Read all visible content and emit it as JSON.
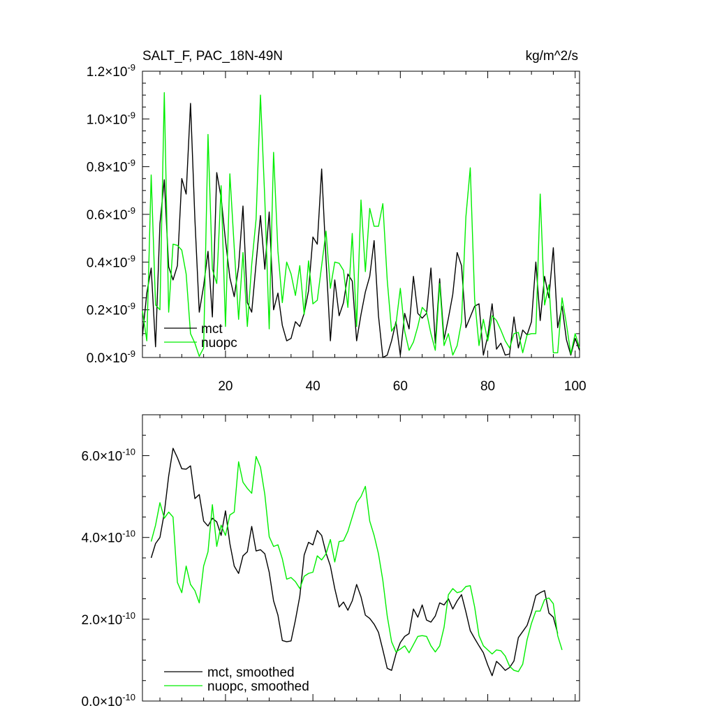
{
  "chart_data": [
    {
      "type": "line",
      "title_left": "SALT_F, PAC_18N-49N",
      "title_right": "kg/m^2/s",
      "xlabel": "",
      "ylabel": "",
      "xlim": [
        1,
        101
      ],
      "ylim": [
        0,
        1.2
      ],
      "y_exponent": "-9",
      "x_tick_labels": [
        "20",
        "40",
        "60",
        "80",
        "100"
      ],
      "x_ticks": [
        20,
        40,
        60,
        80,
        100
      ],
      "y_tick_labels": [
        "1.2",
        "1.0",
        "0.8",
        "0.6",
        "0.4",
        "0.2",
        "0.0"
      ],
      "y_ticks": [
        1.2,
        1.0,
        0.8,
        0.6,
        0.4,
        0.2,
        0.0
      ],
      "legend": [
        "mct",
        "nuopc"
      ],
      "series": [
        {
          "name": "mct",
          "color": "#000000",
          "values": [
            0.09,
            0.27,
            0.375,
            0.045,
            0.56,
            0.745,
            0.38,
            0.325,
            0.385,
            0.75,
            0.685,
            1.065,
            0.58,
            0.19,
            0.3,
            0.445,
            0.17,
            0.775,
            0.67,
            0.49,
            0.335,
            0.255,
            0.38,
            0.635,
            0.23,
            0.19,
            0.395,
            0.595,
            0.37,
            0.61,
            0.2,
            0.27,
            0.135,
            0.07,
            0.08,
            0.15,
            0.13,
            0.185,
            0.28,
            0.505,
            0.475,
            0.79,
            0.41,
            0.07,
            0.325,
            0.175,
            0.23,
            0.35,
            0.32,
            0.07,
            0.18,
            0.275,
            0.34,
            0.49,
            0.175,
            0.0,
            0.01,
            0.07,
            0.15,
            0.01,
            0.185,
            0.12,
            0.34,
            0.185,
            0.165,
            0.185,
            0.375,
            0.06,
            0.33,
            0.075,
            0.165,
            0.265,
            0.44,
            0.385,
            0.125,
            0.17,
            0.215,
            0.225,
            0.01,
            0.09,
            0.225,
            0.035,
            0.06,
            0.01,
            0.015,
            0.17,
            0.04,
            0.115,
            0.095,
            0.15,
            0.4,
            0.155,
            0.34,
            0.25,
            0.46,
            0.125,
            0.215,
            0.075,
            0.01,
            0.08,
            0.03
          ]
        },
        {
          "name": "nuopc",
          "color": "#00ee00",
          "values": [
            0.195,
            0.07,
            0.765,
            0.22,
            0.2,
            1.11,
            0.19,
            0.475,
            0.47,
            0.45,
            0.35,
            0.1,
            0.06,
            0.005,
            0.04,
            0.935,
            0.37,
            0.31,
            0.72,
            0.13,
            0.77,
            0.46,
            0.16,
            0.44,
            0.13,
            0.39,
            0.58,
            1.1,
            0.66,
            0.12,
            0.86,
            0.445,
            0.23,
            0.4,
            0.35,
            0.26,
            0.385,
            0.18,
            0.405,
            0.225,
            0.24,
            0.385,
            0.53,
            0.29,
            0.4,
            0.395,
            0.365,
            0.21,
            0.52,
            0.13,
            0.66,
            0.36,
            0.625,
            0.55,
            0.55,
            0.645,
            0.325,
            0.11,
            0.14,
            0.29,
            0.11,
            0.03,
            0.065,
            0.13,
            0.21,
            0.19,
            0.1,
            0.03,
            0.31,
            0.05,
            0.1,
            0.01,
            0.05,
            0.15,
            0.59,
            0.795,
            0.245,
            0.05,
            0.16,
            0.07,
            0.175,
            0.155,
            0.115,
            0.07,
            0.04,
            0.1,
            0.105,
            0.02,
            0.095,
            0.1,
            0.1,
            0.685,
            0.22,
            0.305,
            0.02,
            0.02,
            0.25,
            0.14,
            0.015,
            0.1,
            0.04
          ]
        }
      ]
    },
    {
      "type": "line",
      "xlabel": "",
      "ylabel": "",
      "xlim": [
        1,
        101
      ],
      "ylim": [
        0,
        7.0
      ],
      "y_exponent": "-10",
      "x_ticks": [
        20,
        40,
        60,
        80,
        100
      ],
      "y_tick_labels": [
        "6.0",
        "4.0",
        "2.0",
        "0.0"
      ],
      "y_ticks": [
        6.0,
        4.0,
        2.0,
        0.0
      ],
      "legend": [
        "mct, smoothed",
        "nuopc, smoothed"
      ],
      "series": [
        {
          "name": "mct, smoothed",
          "color": "#000000",
          "start_x": 3,
          "values": [
            3.5,
            3.85,
            4.0,
            4.6,
            5.5,
            6.18,
            5.95,
            5.68,
            5.67,
            5.75,
            4.95,
            5.05,
            4.4,
            4.28,
            4.47,
            4.38,
            4.05,
            4.65,
            3.85,
            3.3,
            3.12,
            3.55,
            3.65,
            4.27,
            3.67,
            3.7,
            3.6,
            3.15,
            2.45,
            2.1,
            1.48,
            1.45,
            1.47,
            1.98,
            2.56,
            3.57,
            3.88,
            3.82,
            4.17,
            4.05,
            3.62,
            3.3,
            2.75,
            2.3,
            2.42,
            2.22,
            2.45,
            2.85,
            2.55,
            2.1,
            2.02,
            1.88,
            1.68,
            1.25,
            0.8,
            0.75,
            1.15,
            1.43,
            1.58,
            1.65,
            2.25,
            2.05,
            2.35,
            1.98,
            1.93,
            2.08,
            2.4,
            2.35,
            2.5,
            2.25,
            2.45,
            2.6,
            2.18,
            1.72,
            1.53,
            1.35,
            1.18,
            0.88,
            0.62,
            0.97,
            0.87,
            0.75,
            0.82,
            0.98,
            1.55,
            1.7,
            1.85,
            2.17,
            2.58,
            2.65,
            2.7,
            2.15,
            2.05,
            1.65
          ]
        },
        {
          "name": "nuopc, smoothed",
          "color": "#00ee00",
          "start_x": 3,
          "values": [
            3.9,
            4.3,
            4.85,
            4.47,
            4.62,
            4.5,
            2.9,
            2.65,
            3.3,
            2.85,
            2.7,
            2.4,
            3.3,
            3.65,
            4.8,
            3.78,
            4.3,
            4.05,
            4.55,
            4.62,
            5.85,
            5.35,
            5.2,
            5.08,
            5.98,
            5.72,
            5.05,
            4.02,
            3.78,
            3.82,
            3.48,
            2.98,
            3.02,
            2.92,
            2.75,
            3.05,
            3.12,
            3.15,
            3.55,
            3.45,
            3.6,
            3.95,
            3.4,
            3.9,
            3.92,
            4.15,
            4.5,
            4.85,
            5.0,
            5.25,
            4.4,
            4.05,
            3.6,
            2.95,
            2.08,
            1.45,
            1.2,
            1.27,
            1.35,
            1.18,
            1.38,
            1.58,
            1.6,
            1.58,
            1.35,
            1.2,
            1.35,
            1.8,
            2.6,
            2.75,
            2.65,
            2.68,
            2.8,
            2.82,
            2.3,
            1.6,
            1.35,
            1.25,
            1.15,
            1.25,
            1.23,
            1.1,
            0.85,
            0.75,
            0.72,
            0.9,
            1.5,
            1.9,
            2.2,
            2.2,
            2.48,
            2.52,
            2.38,
            1.6,
            1.25
          ]
        }
      ]
    }
  ]
}
